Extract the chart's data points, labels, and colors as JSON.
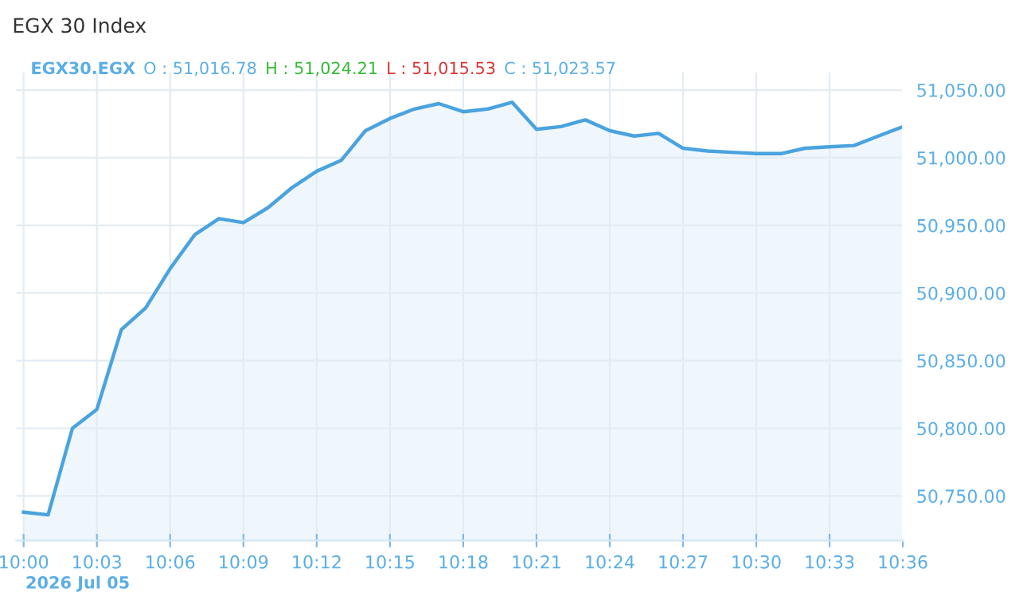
{
  "chart_data": {
    "type": "area",
    "title": "EGX 30 Index",
    "annotations": [
      "EGX30.EGX",
      "O : 51,016.78",
      "H : 51,024.21",
      "L : 51,015.53",
      "C : 51,023.57",
      "2026 Jul 05"
    ],
    "x": [
      10.0,
      10.0167,
      10.0333,
      10.05,
      10.0667,
      10.0833,
      10.1,
      10.1167,
      10.1333,
      10.15,
      10.1667,
      10.1833,
      10.2,
      10.2167,
      10.2333,
      10.25,
      10.2667,
      10.2833,
      10.3,
      10.3167,
      10.3333,
      10.35,
      10.3667,
      10.3833,
      10.4,
      10.4167,
      10.4333,
      10.45,
      10.4667,
      10.4833,
      10.5,
      10.5167,
      10.5333,
      10.55,
      10.5667,
      10.5833,
      10.6
    ],
    "series": [
      {
        "color": "#4aa3df",
        "values": [
          50738,
          50736,
          50800,
          50814,
          50873,
          50889,
          50918,
          50943,
          50955,
          50952,
          50963,
          50978,
          50990,
          50998,
          51020,
          51029,
          51036,
          51040,
          51034,
          51036,
          51041,
          51021,
          51023,
          51028,
          51020,
          51016,
          51018,
          51007,
          51005,
          51004,
          51003,
          51003,
          51007,
          51008,
          51009,
          51016,
          51023
        ]
      }
    ],
    "xlim": [
      9.995,
      10.6
    ],
    "xticks": [
      {
        "value": 10.0,
        "label": "10:00"
      },
      {
        "value": 10.05,
        "label": "10:03"
      },
      {
        "value": 10.1,
        "label": "10:06"
      },
      {
        "value": 10.15,
        "label": "10:09"
      },
      {
        "value": 10.2,
        "label": "10:12"
      },
      {
        "value": 10.25,
        "label": "10:15"
      },
      {
        "value": 10.3,
        "label": "10:18"
      },
      {
        "value": 10.35,
        "label": "10:21"
      },
      {
        "value": 10.4,
        "label": "10:24"
      },
      {
        "value": 10.45,
        "label": "10:27"
      },
      {
        "value": 10.5,
        "label": "10:30"
      },
      {
        "value": 10.55,
        "label": "10:33"
      },
      {
        "value": 10.6,
        "label": "10:36"
      }
    ],
    "ylim": [
      50717,
      51063
    ],
    "yticks": [
      {
        "value": 50750,
        "label": "50,750.00"
      },
      {
        "value": 50800,
        "label": "50,800.00"
      },
      {
        "value": 50850,
        "label": "50,850.00"
      },
      {
        "value": 50900,
        "label": "50,900.00"
      },
      {
        "value": 50950,
        "label": "50,950.00"
      },
      {
        "value": 51000,
        "label": "51,000.00"
      },
      {
        "value": 51050,
        "label": "51,050.00"
      }
    ],
    "grid": true,
    "legend": false,
    "marker": "none",
    "line_style": "solid"
  }
}
